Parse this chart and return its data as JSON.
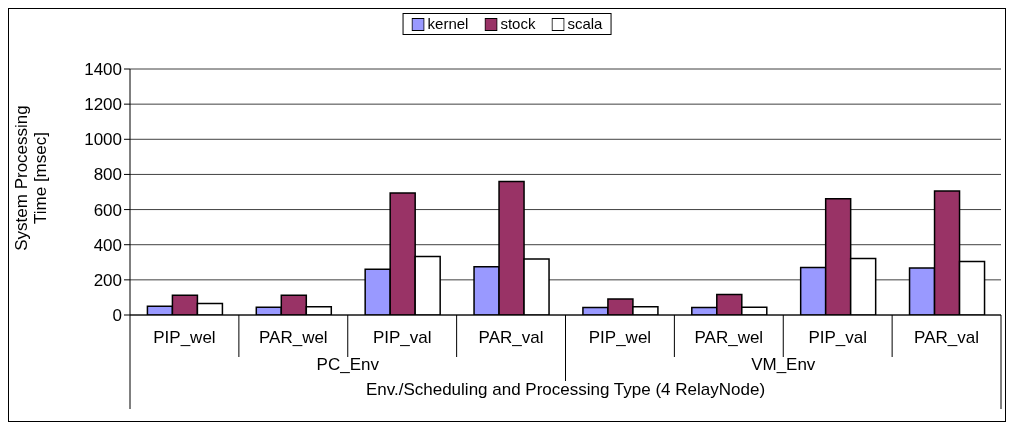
{
  "chart_data": {
    "type": "bar",
    "xlabel": "Env./Scheduling and Processing Type (4 RelayNode)",
    "ylabel": "System Processing Time [msec]",
    "categories": [
      "PIP_wel",
      "PAR_wel",
      "PIP_val",
      "PAR_val",
      "PIP_wel",
      "PAR_wel",
      "PIP_val",
      "PAR_val"
    ],
    "annotations": [
      "PC_Env",
      "VM_Env"
    ],
    "series": [
      {
        "name": "kernel",
        "color": "#9999ff",
        "values": [
          50,
          44,
          260,
          274,
          42,
          42,
          270,
          267
        ]
      },
      {
        "name": "stock",
        "color": "#993366",
        "values": [
          112,
          112,
          695,
          760,
          91,
          116,
          661,
          705
        ]
      },
      {
        "name": "scala",
        "color": "#ffffff",
        "values": [
          65,
          47,
          333,
          319,
          47,
          44,
          321,
          304
        ]
      }
    ],
    "ylim": [
      0,
      1400
    ],
    "yticks": [
      0,
      200,
      400,
      600,
      800,
      1000,
      1200,
      1400
    ],
    "grid": "y",
    "legend": "top"
  }
}
